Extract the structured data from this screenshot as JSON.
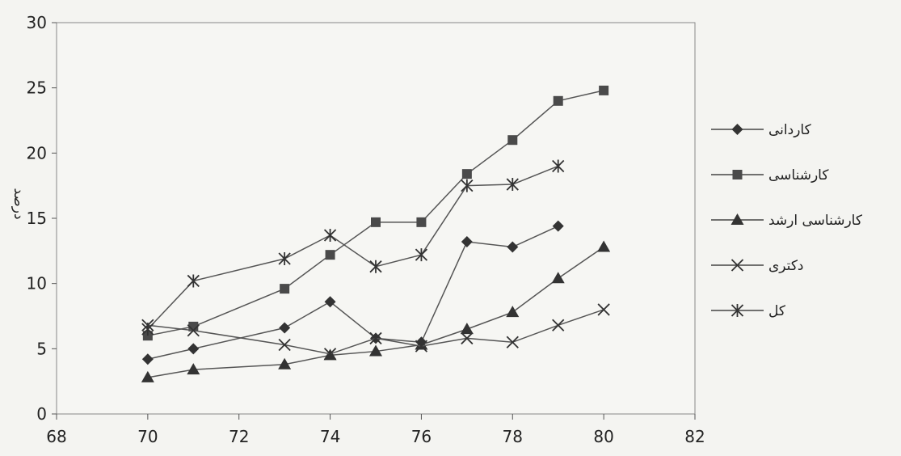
{
  "chart_data": {
    "type": "line",
    "title": "",
    "xlabel": "",
    "ylabel": "درصد",
    "xlim": [
      68,
      82
    ],
    "ylim": [
      0,
      30
    ],
    "x_ticks": [
      "68",
      "70",
      "72",
      "74",
      "76",
      "78",
      "80",
      "82"
    ],
    "y_ticks": [
      "0",
      "5",
      "10",
      "15",
      "20",
      "25",
      "30"
    ],
    "grid": false,
    "legend_position": "right",
    "series": [
      {
        "name": "کاردانی",
        "marker": "diamond",
        "points": [
          [
            70,
            4.2
          ],
          [
            71,
            5.0
          ],
          [
            73,
            6.6
          ],
          [
            74,
            8.6
          ],
          [
            75,
            5.8
          ],
          [
            76,
            5.5
          ],
          [
            77,
            13.2
          ],
          [
            78,
            12.8
          ],
          [
            79,
            14.4
          ]
        ]
      },
      {
        "name": "کارشناسی",
        "marker": "square",
        "points": [
          [
            70,
            6.0
          ],
          [
            71,
            6.7
          ],
          [
            73,
            9.6
          ],
          [
            74,
            12.2
          ],
          [
            75,
            14.7
          ],
          [
            76,
            14.7
          ],
          [
            77,
            18.4
          ],
          [
            78,
            21.0
          ],
          [
            79,
            24.0
          ],
          [
            80,
            24.8
          ]
        ]
      },
      {
        "name": "کارشناسی ارشد",
        "marker": "triangle",
        "points": [
          [
            70,
            2.8
          ],
          [
            71,
            3.4
          ],
          [
            73,
            3.8
          ],
          [
            74,
            4.5
          ],
          [
            75,
            4.8
          ],
          [
            76,
            5.3
          ],
          [
            77,
            6.5
          ],
          [
            78,
            7.8
          ],
          [
            79,
            10.4
          ],
          [
            80,
            12.8
          ]
        ]
      },
      {
        "name": "دکتری",
        "marker": "x",
        "points": [
          [
            70,
            6.8
          ],
          [
            71,
            6.4
          ],
          [
            73,
            5.3
          ],
          [
            74,
            4.6
          ],
          [
            75,
            5.8
          ],
          [
            76,
            5.2
          ],
          [
            77,
            5.8
          ],
          [
            78,
            5.5
          ],
          [
            79,
            6.8
          ],
          [
            80,
            8.0
          ]
        ]
      },
      {
        "name": "کل",
        "marker": "star",
        "points": [
          [
            70,
            6.5
          ],
          [
            71,
            10.2
          ],
          [
            73,
            11.9
          ],
          [
            74,
            13.7
          ],
          [
            75,
            11.3
          ],
          [
            76,
            12.2
          ],
          [
            77,
            17.5
          ],
          [
            78,
            17.6
          ],
          [
            79,
            19.0
          ]
        ]
      }
    ]
  }
}
